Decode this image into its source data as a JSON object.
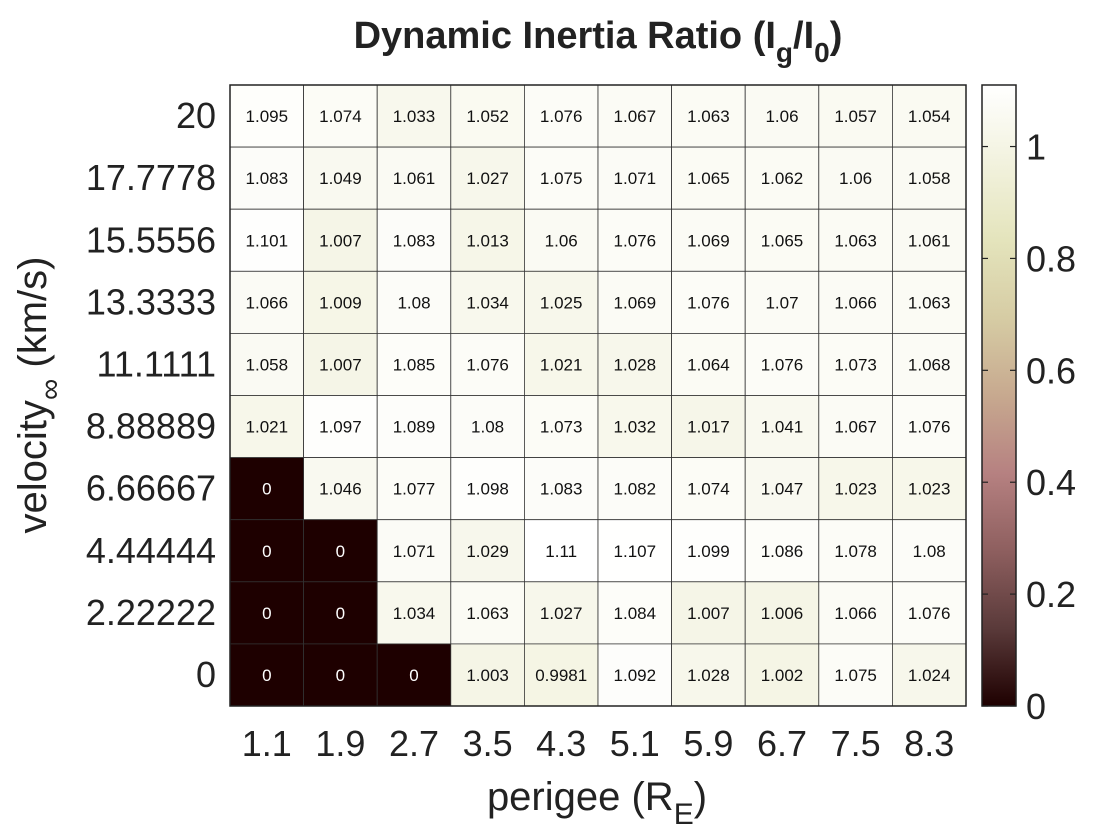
{
  "chart_data": {
    "type": "heatmap",
    "title": "Dynamic Inertia Ratio (I",
    "title_sub1": "g",
    "title_mid": "/I",
    "title_sub2": "0",
    "title_end": ")",
    "xlabel": "perigee (R",
    "xlabel_sub": "E",
    "xlabel_end": ")",
    "ylabel": "velocity",
    "ylabel_sub": "∞",
    "ylabel_end": " (km/s)",
    "x_categories": [
      "1.1",
      "1.9",
      "2.7",
      "3.5",
      "4.3",
      "5.1",
      "5.9",
      "6.7",
      "7.5",
      "8.3"
    ],
    "y_categories": [
      "20",
      "17.7778",
      "15.5556",
      "13.3333",
      "11.1111",
      "8.88889",
      "6.66667",
      "4.44444",
      "2.22222",
      "0"
    ],
    "values": [
      [
        "1.095",
        "1.074",
        "1.033",
        "1.052",
        "1.076",
        "1.067",
        "1.063",
        "1.06",
        "1.057",
        "1.054"
      ],
      [
        "1.083",
        "1.049",
        "1.061",
        "1.027",
        "1.075",
        "1.071",
        "1.065",
        "1.062",
        "1.06",
        "1.058"
      ],
      [
        "1.101",
        "1.007",
        "1.083",
        "1.013",
        "1.06",
        "1.076",
        "1.069",
        "1.065",
        "1.063",
        "1.061"
      ],
      [
        "1.066",
        "1.009",
        "1.08",
        "1.034",
        "1.025",
        "1.069",
        "1.076",
        "1.07",
        "1.066",
        "1.063"
      ],
      [
        "1.058",
        "1.007",
        "1.085",
        "1.076",
        "1.021",
        "1.028",
        "1.064",
        "1.076",
        "1.073",
        "1.068"
      ],
      [
        "1.021",
        "1.097",
        "1.089",
        "1.08",
        "1.073",
        "1.032",
        "1.017",
        "1.041",
        "1.067",
        "1.076"
      ],
      [
        "0",
        "1.046",
        "1.077",
        "1.098",
        "1.083",
        "1.082",
        "1.074",
        "1.047",
        "1.023",
        "1.023"
      ],
      [
        "0",
        "0",
        "1.071",
        "1.029",
        "1.11",
        "1.107",
        "1.099",
        "1.086",
        "1.078",
        "1.08"
      ],
      [
        "0",
        "0",
        "1.034",
        "1.063",
        "1.027",
        "1.084",
        "1.007",
        "1.006",
        "1.066",
        "1.076"
      ],
      [
        "0",
        "0",
        "0",
        "1.003",
        "0.9981",
        "1.092",
        "1.028",
        "1.002",
        "1.075",
        "1.024"
      ]
    ],
    "colorbar": {
      "min": 0,
      "max": 1.11,
      "ticks": [
        "0",
        "0.2",
        "0.4",
        "0.6",
        "0.8",
        "1"
      ],
      "colormap": "pink",
      "stops": [
        "#1e0000",
        "#5a3a3a",
        "#8e5f5f",
        "#b68181",
        "#c7a98f",
        "#d6cca4",
        "#e4e4bc",
        "#f2f2de",
        "#ffffff"
      ]
    }
  }
}
